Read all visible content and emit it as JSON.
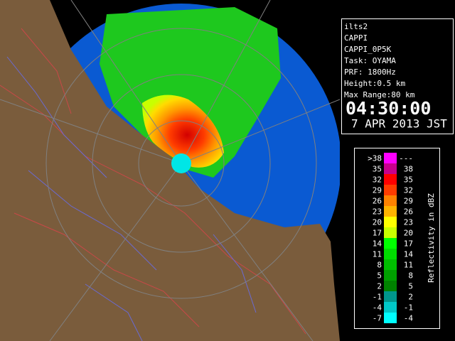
{
  "info": {
    "lines": [
      "ilts2",
      "CAPPI",
      "CAPPI_0P5K",
      "Task: OYAMA",
      "PRF: 1800Hz",
      "Height:0.5 km",
      "Max Range:80 km"
    ],
    "time": "04:30:00",
    "date": "7 APR 2013 JST"
  },
  "legend": {
    "title": "Reflectivity in dBZ",
    "rows": [
      {
        "low": ">38",
        "high": "---",
        "color": "#ff00ff"
      },
      {
        "low": "35",
        "high": "38",
        "color": "#c8008c"
      },
      {
        "low": "32",
        "high": "35",
        "color": "#ff0000"
      },
      {
        "low": "29",
        "high": "32",
        "color": "#ff3c00"
      },
      {
        "low": "26",
        "high": "29",
        "color": "#ff8200"
      },
      {
        "low": "23",
        "high": "26",
        "color": "#ffb400"
      },
      {
        "low": "20",
        "high": "23",
        "color": "#ffff00"
      },
      {
        "low": "17",
        "high": "20",
        "color": "#c8ff00"
      },
      {
        "low": "14",
        "high": "17",
        "color": "#00ff00"
      },
      {
        "low": "11",
        "high": "14",
        "color": "#00dc00"
      },
      {
        "low": "8",
        "high": "11",
        "color": "#00be00"
      },
      {
        "low": "5",
        "high": "8",
        "color": "#00a000"
      },
      {
        "low": "2",
        "high": "5",
        "color": "#008200"
      },
      {
        "low": "-1",
        "high": "2",
        "color": "#00968c"
      },
      {
        "low": "-4",
        "high": "-1",
        "color": "#00c8c8"
      },
      {
        "low": "-7",
        "high": "-4",
        "color": "#00ffff"
      }
    ]
  }
}
